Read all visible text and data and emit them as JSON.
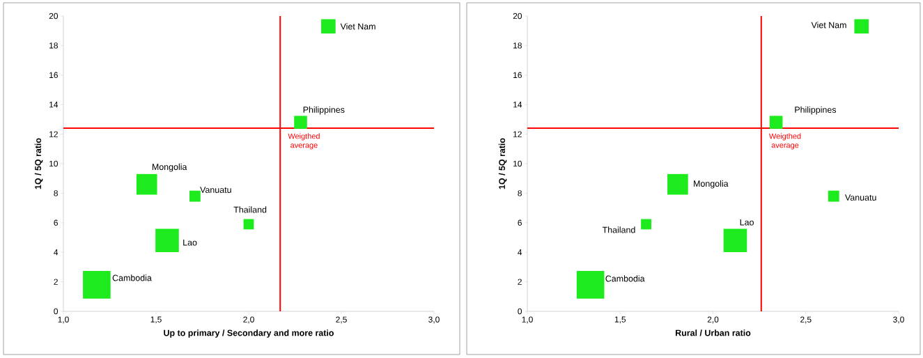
{
  "chart_data": [
    {
      "type": "bubble",
      "marker": "square",
      "color": "#1EEB1E",
      "x": [
        2.43,
        2.28,
        1.45,
        1.71,
        2.0,
        1.56,
        1.18
      ],
      "values": [
        19.3,
        12.8,
        8.6,
        7.8,
        5.9,
        4.8,
        1.8
      ],
      "sizes": [
        0.27,
        0.22,
        0.56,
        0.16,
        0.14,
        0.72,
        1
      ],
      "xlim": [
        1,
        3
      ],
      "ylim": [
        0,
        20
      ],
      "xticks": [
        {
          "value": 1,
          "label": "1,0"
        },
        {
          "value": 1.5,
          "label": "1,5"
        },
        {
          "value": 2,
          "label": "2,0"
        },
        {
          "value": 2.5,
          "label": "2,5"
        },
        {
          "value": 3,
          "label": "3,0"
        }
      ],
      "yticks": [
        0,
        2,
        4,
        6,
        8,
        10,
        12,
        14,
        16,
        18,
        20
      ],
      "xlabel": "Up to primary / Secondary and more ratio",
      "ylabel": "1Q / 5Q ratio",
      "ref_lines": [
        {
          "axis": "x",
          "value": 2.17,
          "label": "Weigthed average",
          "color": "#FF0000"
        },
        {
          "axis": "y",
          "value": 12.4,
          "color": "#FF0000"
        }
      ],
      "annotations": [
        {
          "text": "Viet Nam",
          "x": 2.43,
          "y": 19.3
        },
        {
          "text": "Philippines",
          "x": 2.28,
          "y": 12.8
        },
        {
          "text": "Mongolia",
          "x": 1.45,
          "y": 8.6
        },
        {
          "text": "Vanuatu",
          "x": 1.71,
          "y": 7.8
        },
        {
          "text": "Thailand",
          "x": 2.0,
          "y": 5.9
        },
        {
          "text": "Lao",
          "x": 1.56,
          "y": 4.8
        },
        {
          "text": "Cambodia",
          "x": 1.18,
          "y": 1.8
        }
      ]
    },
    {
      "type": "bubble",
      "marker": "square",
      "color": "#1EEB1E",
      "x": [
        2.8,
        2.34,
        1.81,
        2.65,
        1.64,
        2.12,
        1.34
      ],
      "values": [
        19.3,
        12.8,
        8.6,
        7.8,
        5.9,
        4.8,
        1.8
      ],
      "sizes": [
        0.27,
        0.22,
        0.56,
        0.16,
        0.14,
        0.72,
        1
      ],
      "xlim": [
        1,
        3
      ],
      "ylim": [
        0,
        20
      ],
      "xticks": [
        {
          "value": 1,
          "label": "1,0"
        },
        {
          "value": 1.5,
          "label": "1,5"
        },
        {
          "value": 2,
          "label": "2,0"
        },
        {
          "value": 2.5,
          "label": "2,5"
        },
        {
          "value": 3,
          "label": "3,0"
        }
      ],
      "yticks": [
        0,
        2,
        4,
        6,
        8,
        10,
        12,
        14,
        16,
        18,
        20
      ],
      "xlabel": "Rural / Urban ratio",
      "ylabel": "1Q / 5Q ratio",
      "ref_lines": [
        {
          "axis": "x",
          "value": 2.26,
          "label": "Weigthed average",
          "color": "#FF0000"
        },
        {
          "axis": "y",
          "value": 12.4,
          "color": "#FF0000"
        }
      ],
      "annotations": [
        {
          "text": "Viet Nam",
          "x": 2.8,
          "y": 19.3
        },
        {
          "text": "Philippines",
          "x": 2.34,
          "y": 12.8
        },
        {
          "text": "Mongolia",
          "x": 1.81,
          "y": 8.6
        },
        {
          "text": "Vanuatu",
          "x": 2.65,
          "y": 7.8
        },
        {
          "text": "Thailand",
          "x": 1.64,
          "y": 5.9
        },
        {
          "text": "Lao",
          "x": 2.12,
          "y": 4.8
        },
        {
          "text": "Cambodia",
          "x": 1.34,
          "y": 1.8
        }
      ]
    }
  ]
}
